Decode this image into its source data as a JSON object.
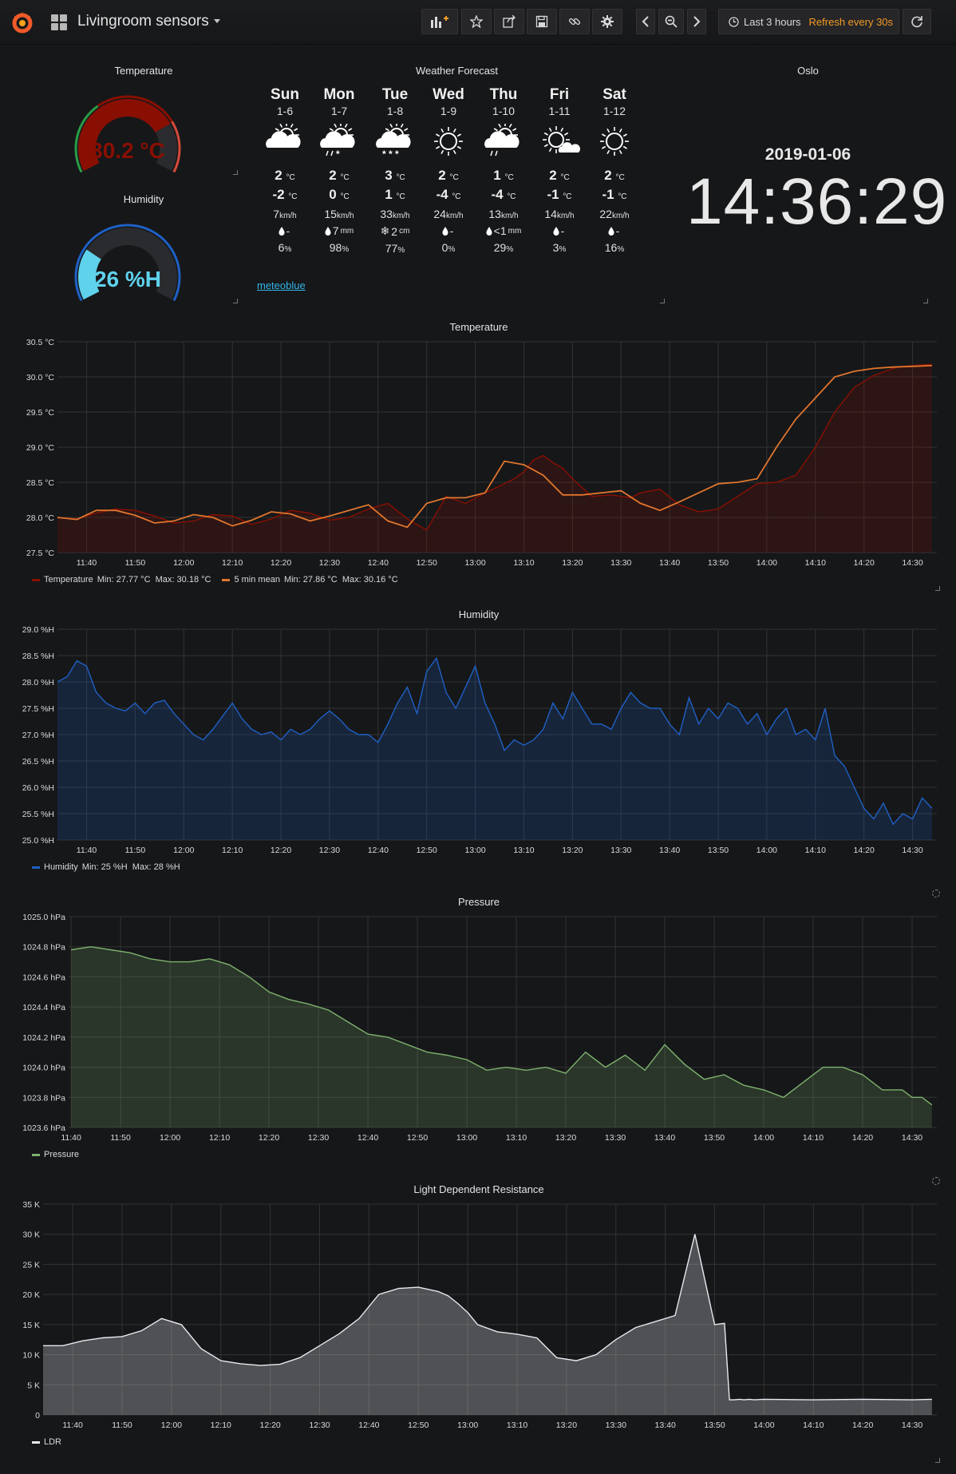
{
  "navbar": {
    "title": "Livingroom sensors",
    "time_range": "Last 3 hours",
    "refresh": "Refresh every 30s"
  },
  "gauges": [
    {
      "title": "Temperature",
      "value_label": "30.2 °C",
      "value": 30.2,
      "min": 0,
      "max": 40,
      "color": "#890f02",
      "thresholds_colors": [
        "#299c46",
        "#890f02",
        "#d44a3a"
      ]
    },
    {
      "title": "Humidity",
      "value_label": "26 %H",
      "value": 26,
      "min": 0,
      "max": 100,
      "color": "#5fd2ec",
      "thresholds_colors": [
        "#1f60c4"
      ]
    }
  ],
  "forecast": {
    "title": "Weather Forecast",
    "link": "meteoblue",
    "days": [
      {
        "day": "Sun",
        "date": "1-6",
        "icon": "sun-cloud",
        "tmax": "2",
        "tmin": "-2",
        "wind": "7",
        "precip": "-",
        "precip_icon": "drop",
        "precip_unit": "",
        "prob": "6"
      },
      {
        "day": "Mon",
        "date": "1-7",
        "icon": "sun-cloud-rain-snow",
        "tmax": "2",
        "tmin": "0",
        "wind": "15",
        "precip": "7",
        "precip_icon": "drop",
        "precip_unit": "mm",
        "prob": "98"
      },
      {
        "day": "Tue",
        "date": "1-8",
        "icon": "cloud-snow",
        "tmax": "3",
        "tmin": "1",
        "wind": "33",
        "precip": "2",
        "precip_icon": "snowflake",
        "precip_unit": "cm",
        "prob": "77"
      },
      {
        "day": "Wed",
        "date": "1-9",
        "icon": "sun",
        "tmax": "2",
        "tmin": "-4",
        "wind": "24",
        "precip": "-",
        "precip_icon": "drop",
        "precip_unit": "",
        "prob": "0"
      },
      {
        "day": "Thu",
        "date": "1-10",
        "icon": "sun-cloud-rain",
        "tmax": "1",
        "tmin": "-4",
        "wind": "13",
        "precip": "<1",
        "precip_icon": "drop",
        "precip_unit": "mm",
        "prob": "29"
      },
      {
        "day": "Fri",
        "date": "1-11",
        "icon": "sun-small-cloud",
        "tmax": "2",
        "tmin": "-1",
        "wind": "14",
        "precip": "-",
        "precip_icon": "drop",
        "precip_unit": "",
        "prob": "3"
      },
      {
        "day": "Sat",
        "date": "1-12",
        "icon": "sun",
        "tmax": "2",
        "tmin": "-1",
        "wind": "22",
        "precip": "-",
        "precip_icon": "drop",
        "precip_unit": "",
        "prob": "16"
      }
    ],
    "temp_unit": "°C",
    "wind_unit": "km/h",
    "prob_unit": "%"
  },
  "clock": {
    "title": "Oslo",
    "date": "2019-01-06",
    "time": "14:36:29"
  },
  "chart_data": [
    {
      "type": "area",
      "title": "Temperature",
      "x_ticks": [
        "11:40",
        "11:50",
        "12:00",
        "12:10",
        "12:20",
        "12:30",
        "12:40",
        "12:50",
        "13:00",
        "13:10",
        "13:20",
        "13:30",
        "13:40",
        "13:50",
        "14:00",
        "14:10",
        "14:20",
        "14:30"
      ],
      "y_ticks": [
        "27.5 °C",
        "28.0 °C",
        "28.5 °C",
        "29.0 °C",
        "29.5 °C",
        "30.0 °C",
        "30.5 °C"
      ],
      "ylim": [
        27.5,
        30.5
      ],
      "xlim_minutes": [
        -6,
        175
      ],
      "series": [
        {
          "name": "Temperature",
          "legend": "Min: 27.77 °C  Max: 30.18 °C",
          "color": "#890f02",
          "fill": true,
          "x": [
            -6,
            -2,
            2,
            6,
            10,
            14,
            18,
            22,
            26,
            30,
            34,
            38,
            42,
            46,
            50,
            54,
            58,
            62,
            66,
            70,
            74,
            78,
            82,
            86,
            88,
            90,
            92,
            94,
            96,
            98,
            100,
            104,
            108,
            112,
            114,
            118,
            122,
            126,
            130,
            134,
            138,
            142,
            146,
            150,
            154,
            158,
            162,
            166,
            168,
            170,
            172,
            174
          ],
          "y": [
            28.0,
            27.98,
            28.06,
            28.12,
            28.1,
            28.02,
            27.92,
            27.95,
            28.04,
            28.02,
            27.9,
            27.98,
            28.1,
            28.06,
            27.96,
            28.0,
            28.12,
            28.2,
            27.98,
            27.82,
            28.3,
            28.2,
            28.35,
            28.48,
            28.55,
            28.65,
            28.82,
            28.88,
            28.78,
            28.7,
            28.55,
            28.3,
            28.32,
            28.28,
            28.35,
            28.4,
            28.18,
            28.08,
            28.12,
            28.3,
            28.48,
            28.5,
            28.6,
            29.0,
            29.5,
            29.85,
            30.02,
            30.12,
            30.15,
            30.16,
            30.17,
            30.18
          ]
        },
        {
          "name": "5 min mean",
          "legend": "Min: 27.86 °C  Max: 30.16 °C",
          "color": "#e0752d",
          "fill": false,
          "x": [
            -6,
            -2,
            2,
            6,
            10,
            14,
            18,
            22,
            26,
            30,
            34,
            38,
            42,
            46,
            50,
            54,
            58,
            62,
            66,
            70,
            74,
            78,
            82,
            86,
            90,
            94,
            98,
            102,
            106,
            110,
            114,
            118,
            122,
            126,
            130,
            134,
            138,
            142,
            146,
            150,
            154,
            158,
            162,
            166,
            170,
            174
          ],
          "y": [
            28.0,
            27.97,
            28.1,
            28.1,
            28.03,
            27.92,
            27.95,
            28.04,
            28.0,
            27.88,
            27.96,
            28.08,
            28.05,
            27.95,
            28.02,
            28.1,
            28.18,
            27.95,
            27.86,
            28.2,
            28.28,
            28.28,
            28.35,
            28.8,
            28.75,
            28.6,
            28.32,
            28.32,
            28.35,
            28.38,
            28.2,
            28.1,
            28.22,
            28.35,
            28.48,
            28.5,
            28.55,
            29.0,
            29.4,
            29.7,
            30.0,
            30.08,
            30.12,
            30.14,
            30.15,
            30.16
          ]
        }
      ]
    },
    {
      "type": "area",
      "title": "Humidity",
      "x_ticks": [
        "11:40",
        "11:50",
        "12:00",
        "12:10",
        "12:20",
        "12:30",
        "12:40",
        "12:50",
        "13:00",
        "13:10",
        "13:20",
        "13:30",
        "13:40",
        "13:50",
        "14:00",
        "14:10",
        "14:20",
        "14:30"
      ],
      "y_ticks": [
        "25.0 %H",
        "25.5 %H",
        "26.0 %H",
        "26.5 %H",
        "27.0 %H",
        "27.5 %H",
        "28.0 %H",
        "28.5 %H",
        "29.0 %H"
      ],
      "ylim": [
        25.0,
        29.0
      ],
      "xlim_minutes": [
        -6,
        175
      ],
      "series": [
        {
          "name": "Humidity",
          "legend": "Min: 25 %H  Max: 28 %H",
          "color": "#1f60c4",
          "fill": true,
          "x": [
            -6,
            -4,
            -2,
            0,
            2,
            4,
            6,
            8,
            10,
            12,
            14,
            16,
            18,
            20,
            22,
            24,
            26,
            28,
            30,
            32,
            34,
            36,
            38,
            40,
            42,
            44,
            46,
            48,
            50,
            52,
            54,
            56,
            58,
            60,
            62,
            64,
            66,
            68,
            70,
            72,
            74,
            76,
            78,
            80,
            82,
            84,
            86,
            88,
            90,
            92,
            94,
            96,
            98,
            100,
            102,
            104,
            106,
            108,
            110,
            112,
            114,
            116,
            118,
            120,
            122,
            124,
            126,
            128,
            130,
            132,
            134,
            136,
            138,
            140,
            142,
            144,
            146,
            148,
            150,
            152,
            154,
            156,
            158,
            160,
            162,
            164,
            166,
            168,
            170,
            172,
            174
          ],
          "y": [
            28.0,
            28.1,
            28.4,
            28.3,
            27.8,
            27.6,
            27.5,
            27.45,
            27.6,
            27.4,
            27.6,
            27.65,
            27.4,
            27.2,
            27.0,
            26.9,
            27.1,
            27.35,
            27.6,
            27.3,
            27.1,
            27.0,
            27.05,
            26.9,
            27.1,
            27.0,
            27.1,
            27.3,
            27.45,
            27.3,
            27.1,
            27.0,
            27.0,
            26.85,
            27.2,
            27.6,
            27.9,
            27.4,
            28.2,
            28.45,
            27.8,
            27.5,
            27.9,
            28.3,
            27.6,
            27.2,
            26.7,
            26.9,
            26.8,
            26.9,
            27.1,
            27.6,
            27.3,
            27.8,
            27.5,
            27.2,
            27.2,
            27.1,
            27.5,
            27.8,
            27.6,
            27.5,
            27.5,
            27.2,
            27.0,
            27.7,
            27.2,
            27.5,
            27.3,
            27.6,
            27.5,
            27.2,
            27.4,
            27.0,
            27.3,
            27.5,
            27.0,
            27.1,
            26.9,
            27.5,
            26.6,
            26.4,
            26.0,
            25.6,
            25.4,
            25.7,
            25.3,
            25.5,
            25.4,
            25.8,
            25.6
          ]
        }
      ]
    },
    {
      "type": "area",
      "title": "Pressure",
      "x_ticks": [
        "11:40",
        "11:50",
        "12:00",
        "12:10",
        "12:20",
        "12:30",
        "12:40",
        "12:50",
        "13:00",
        "13:10",
        "13:20",
        "13:30",
        "13:40",
        "13:50",
        "14:00",
        "14:10",
        "14:20",
        "14:30"
      ],
      "y_ticks": [
        "1023.6 hPa",
        "1023.8 hPa",
        "1024.0 hPa",
        "1024.2 hPa",
        "1024.4 hPa",
        "1024.6 hPa",
        "1024.8 hPa",
        "1025.0 hPa"
      ],
      "ylim": [
        1023.6,
        1025.0
      ],
      "xlim_minutes": [
        -0.5,
        175
      ],
      "series": [
        {
          "name": "Pressure",
          "legend": "",
          "color": "#7eb26d",
          "fill": true,
          "x": [
            0,
            4,
            8,
            12,
            16,
            20,
            24,
            28,
            32,
            36,
            40,
            44,
            48,
            52,
            56,
            60,
            64,
            68,
            72,
            76,
            80,
            84,
            88,
            92,
            96,
            100,
            104,
            108,
            112,
            116,
            120,
            124,
            128,
            132,
            136,
            140,
            144,
            148,
            152,
            156,
            160,
            164,
            168,
            170,
            172,
            174
          ],
          "y": [
            1024.78,
            1024.8,
            1024.78,
            1024.76,
            1024.72,
            1024.7,
            1024.7,
            1024.72,
            1024.68,
            1024.6,
            1024.5,
            1024.45,
            1024.42,
            1024.38,
            1024.3,
            1024.22,
            1024.2,
            1024.15,
            1024.1,
            1024.08,
            1024.05,
            1023.98,
            1024.0,
            1023.98,
            1024.0,
            1023.96,
            1024.1,
            1024.0,
            1024.08,
            1023.98,
            1024.15,
            1024.02,
            1023.92,
            1023.95,
            1023.88,
            1023.85,
            1023.8,
            1023.9,
            1024.0,
            1024.0,
            1023.95,
            1023.85,
            1023.85,
            1023.8,
            1023.8,
            1023.75
          ]
        }
      ]
    },
    {
      "type": "area",
      "title": "Light Dependent Resistance",
      "x_ticks": [
        "11:40",
        "11:50",
        "12:00",
        "12:10",
        "12:20",
        "12:30",
        "12:40",
        "12:50",
        "13:00",
        "13:10",
        "13:20",
        "13:30",
        "13:40",
        "13:50",
        "14:00",
        "14:10",
        "14:20",
        "14:30"
      ],
      "y_ticks": [
        "0",
        "5 K",
        "10 K",
        "15 K",
        "20 K",
        "25 K",
        "30 K",
        "35 K"
      ],
      "ylim": [
        0,
        35000
      ],
      "xlim_minutes": [
        -6,
        175
      ],
      "series": [
        {
          "name": "LDR",
          "legend": "",
          "color": "#e8e8f0",
          "fill": true,
          "x": [
            -6,
            -2,
            2,
            6,
            10,
            14,
            18,
            22,
            26,
            30,
            34,
            38,
            42,
            46,
            50,
            54,
            58,
            62,
            66,
            70,
            74,
            76,
            78,
            80,
            82,
            86,
            90,
            94,
            98,
            102,
            106,
            110,
            114,
            118,
            122,
            126,
            130,
            132,
            133,
            134,
            135,
            136,
            137,
            138,
            140,
            150,
            160,
            170,
            174
          ],
          "y": [
            11500,
            11500,
            12300,
            12800,
            13000,
            14000,
            16000,
            15000,
            11000,
            9000,
            8500,
            8200,
            8400,
            9500,
            11500,
            13500,
            16000,
            20000,
            21000,
            21200,
            20500,
            19800,
            18500,
            17000,
            15000,
            13800,
            13400,
            12800,
            9500,
            9000,
            10000,
            12500,
            14500,
            15500,
            16500,
            30000,
            15000,
            15200,
            2500,
            2500,
            2600,
            2500,
            2600,
            2500,
            2600,
            2500,
            2600,
            2500,
            2600
          ]
        }
      ]
    }
  ]
}
